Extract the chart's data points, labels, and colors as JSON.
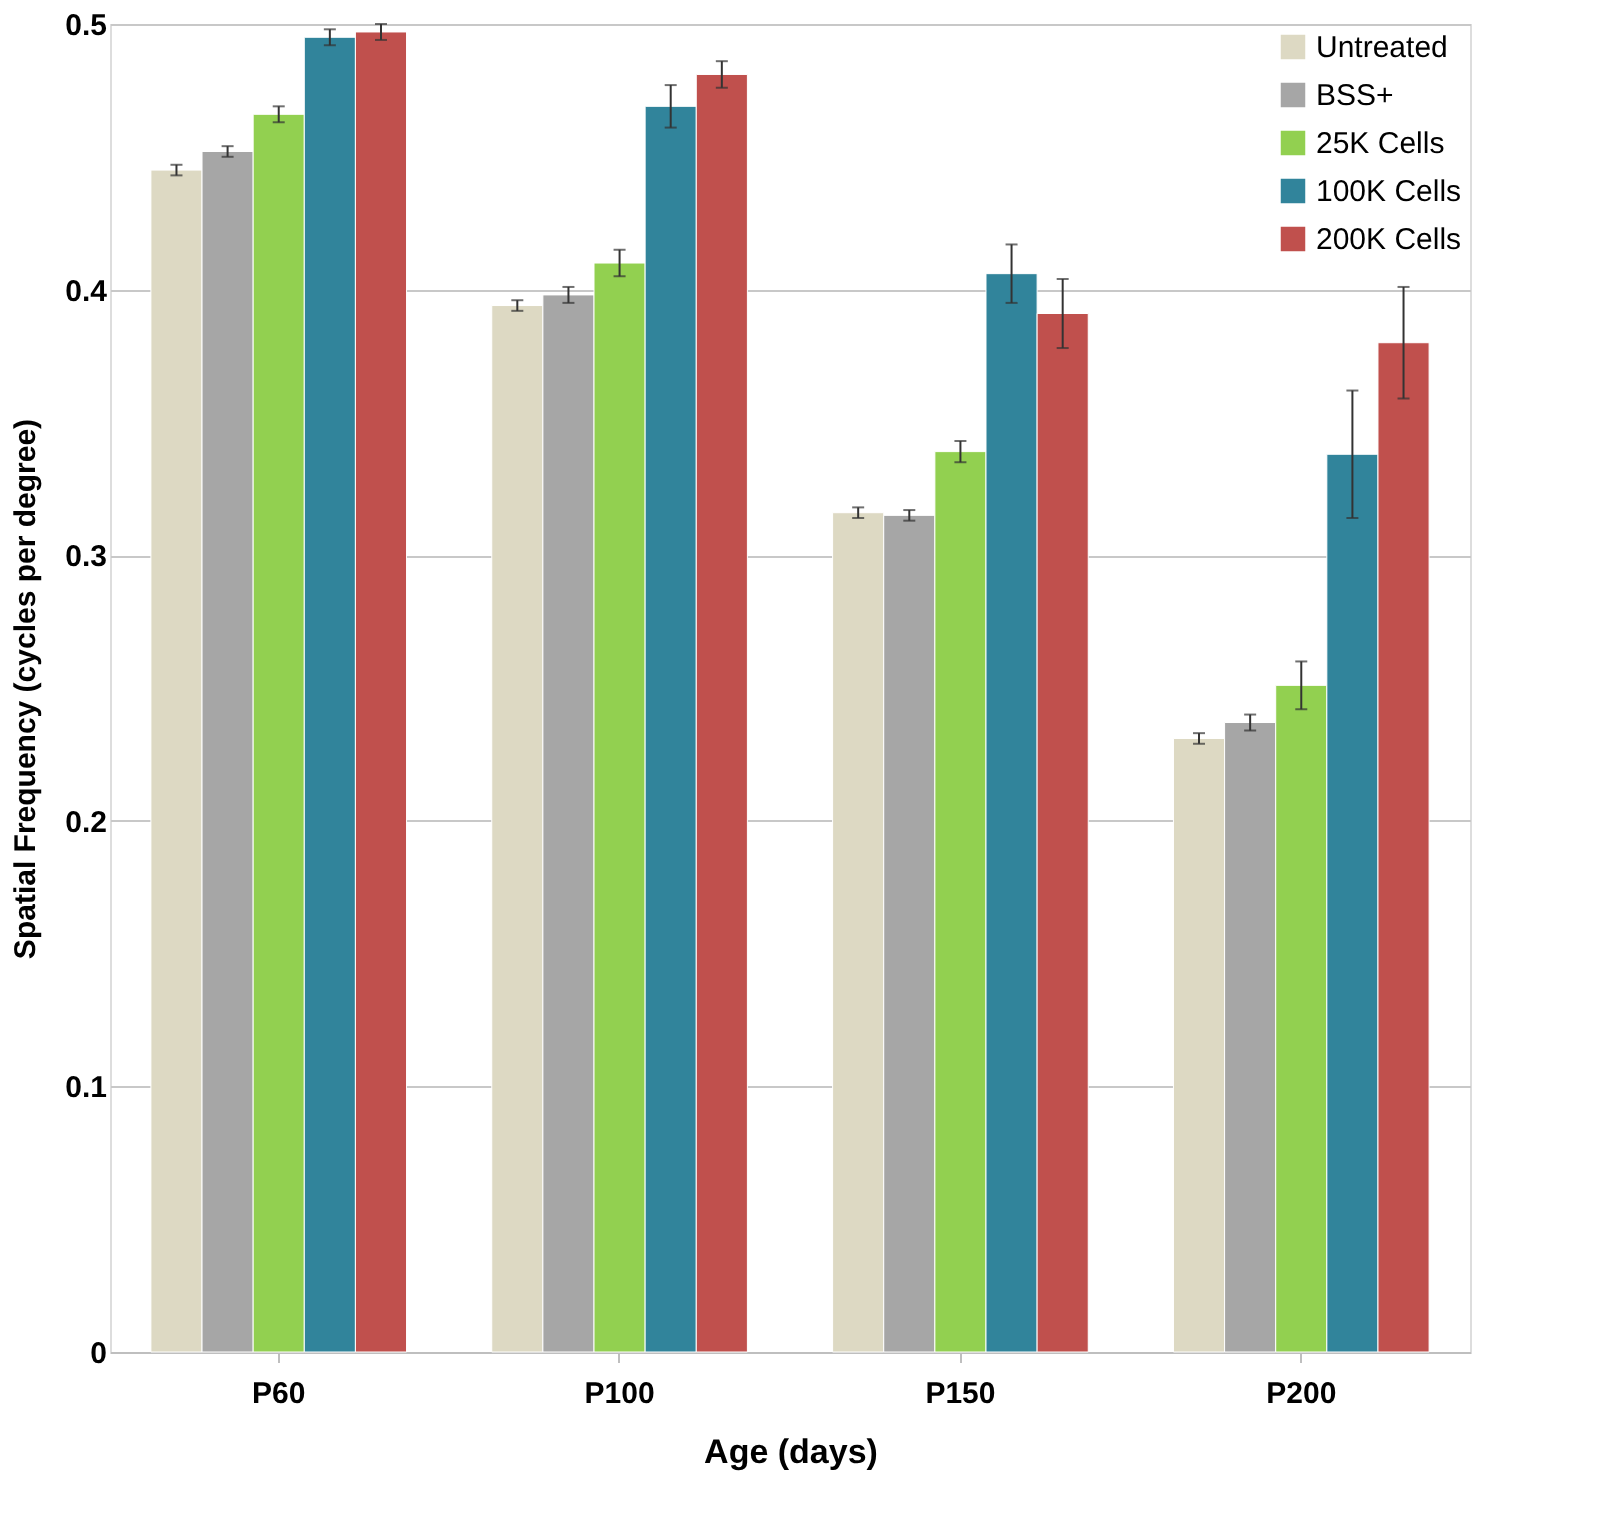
{
  "chart_data": {
    "type": "bar",
    "xlabel": "Age (days)",
    "ylabel": "Spatial Frequency (cycles per degree)",
    "categories": [
      "P60",
      "P100",
      "P150",
      "P200"
    ],
    "series": [
      {
        "name": "Untreated",
        "color": "#ddd9c3",
        "values": [
          0.445,
          0.394,
          0.316,
          0.231
        ],
        "errors": [
          0.002,
          0.002,
          0.002,
          0.002
        ]
      },
      {
        "name": "BSS+",
        "color": "#a6a6a6",
        "values": [
          0.452,
          0.398,
          0.315,
          0.237
        ],
        "errors": [
          0.002,
          0.003,
          0.002,
          0.003
        ]
      },
      {
        "name": "25K Cells",
        "color": "#92d050",
        "values": [
          0.466,
          0.41,
          0.339,
          0.251
        ],
        "errors": [
          0.003,
          0.005,
          0.004,
          0.009
        ]
      },
      {
        "name": "100K Cells",
        "color": "#31849b",
        "values": [
          0.495,
          0.469,
          0.406,
          0.338
        ],
        "errors": [
          0.003,
          0.008,
          0.011,
          0.024
        ]
      },
      {
        "name": "200K Cells",
        "color": "#c0504d",
        "values": [
          0.497,
          0.481,
          0.391,
          0.38
        ],
        "errors": [
          0.003,
          0.005,
          0.013,
          0.021
        ]
      }
    ],
    "ylim": [
      0,
      0.5
    ],
    "yticks": [
      0,
      0.1,
      0.2,
      0.3,
      0.4,
      0.5
    ],
    "grid": "y",
    "legend": "top right"
  }
}
